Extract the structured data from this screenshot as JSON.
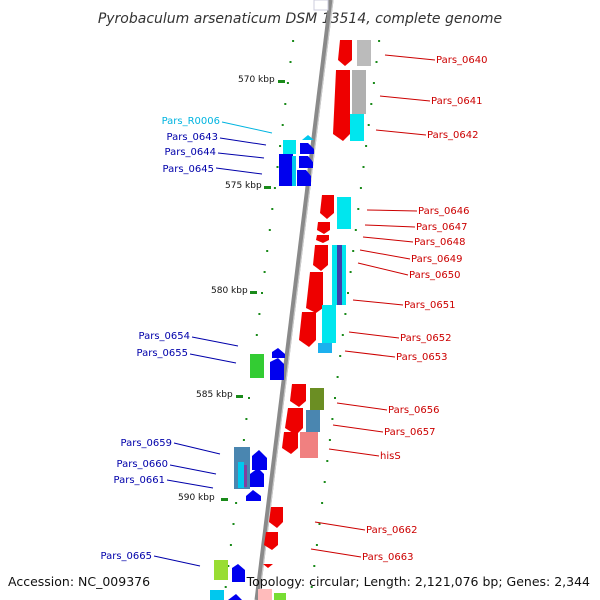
{
  "title": "Pyrobaculum arsenaticum DSM 13514, complete genome",
  "footer": {
    "accession": "Accession: NC_009376",
    "summary": "Topology: circular; Length: 2,121,076 bp; Genes: 2,344"
  },
  "colors": {
    "backbone": "#8a8a8a",
    "ticks": "#1a8a1a",
    "forward_label": "#0000aa",
    "reverse_label": "#cc0000",
    "rna_label": "#00b4e0"
  },
  "kbp_marks": [
    {
      "label": "570 kbp"
    },
    {
      "label": "575 kbp"
    },
    {
      "label": "580 kbp"
    },
    {
      "label": "585 kbp"
    },
    {
      "label": "590 kbp"
    }
  ],
  "left_labels": [
    {
      "text": "Pars_R0006",
      "kind": "rna"
    },
    {
      "text": "Pars_0643",
      "kind": "forward"
    },
    {
      "text": "Pars_0644",
      "kind": "forward"
    },
    {
      "text": "Pars_0645",
      "kind": "forward"
    },
    {
      "text": "Pars_0654",
      "kind": "forward"
    },
    {
      "text": "Pars_0655",
      "kind": "forward"
    },
    {
      "text": "Pars_0659",
      "kind": "forward"
    },
    {
      "text": "Pars_0660",
      "kind": "forward"
    },
    {
      "text": "Pars_0661",
      "kind": "forward"
    },
    {
      "text": "Pars_0665",
      "kind": "forward"
    }
  ],
  "right_labels": [
    {
      "text": "Pars_0640"
    },
    {
      "text": "Pars_0641"
    },
    {
      "text": "Pars_0642"
    },
    {
      "text": "Pars_0646"
    },
    {
      "text": "Pars_0647"
    },
    {
      "text": "Pars_0648"
    },
    {
      "text": "Pars_0649"
    },
    {
      "text": "Pars_0650"
    },
    {
      "text": "Pars_0651"
    },
    {
      "text": "Pars_0652"
    },
    {
      "text": "Pars_0653"
    },
    {
      "text": "Pars_0656"
    },
    {
      "text": "Pars_0657"
    },
    {
      "text": "hisS"
    },
    {
      "text": "Pars_0662"
    },
    {
      "text": "Pars_0663"
    }
  ]
}
